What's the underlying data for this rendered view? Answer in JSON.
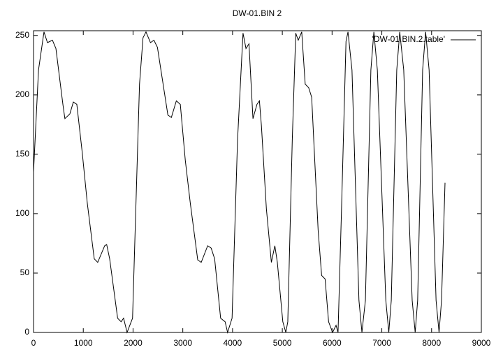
{
  "chart_data": {
    "type": "line",
    "title": "DW-01.BIN 2",
    "x": [
      0,
      100,
      210,
      280,
      380,
      450,
      590,
      630,
      730,
      800,
      870,
      980,
      1080,
      1220,
      1290,
      1430,
      1470,
      1530,
      1690,
      1760,
      1810,
      1880,
      1990,
      2130,
      2200,
      2260,
      2350,
      2420,
      2490,
      2700,
      2770,
      2870,
      2950,
      3050,
      3150,
      3300,
      3370,
      3500,
      3570,
      3640,
      3760,
      3850,
      3900,
      3990,
      4100,
      4210,
      4270,
      4330,
      4410,
      4490,
      4540,
      4580,
      4680,
      4780,
      4850,
      4900,
      5010,
      5070,
      5110,
      5200,
      5270,
      5320,
      5390,
      5460,
      5530,
      5590,
      5720,
      5790,
      5860,
      5930,
      6010,
      6080,
      6120,
      6190,
      6280,
      6320,
      6400,
      6540,
      6600,
      6670,
      6780,
      6840,
      6910,
      7080,
      7140,
      7190,
      7300,
      7360,
      7440,
      7610,
      7670,
      7720,
      7820,
      7880,
      7950,
      8090,
      8150,
      8200,
      8270
    ],
    "series": [
      {
        "name": "'DW-01.BIN.2.table'",
        "color": "#000000",
        "values": [
          135,
          221,
          253,
          244,
          246,
          239,
          192,
          180,
          184,
          194,
          192,
          151,
          109,
          62,
          59,
          73,
          74,
          62,
          12,
          9,
          12,
          0,
          12,
          209,
          248,
          253,
          244,
          246,
          240,
          183,
          181,
          195,
          192,
          145,
          109,
          61,
          59,
          73,
          71,
          62,
          12,
          9,
          0,
          12,
          162,
          252,
          239,
          243,
          180,
          192,
          195,
          174,
          104,
          59,
          73,
          59,
          9,
          0,
          9,
          162,
          252,
          246,
          253,
          209,
          206,
          198,
          86,
          48,
          45,
          9,
          0,
          6,
          0,
          104,
          245,
          253,
          221,
          27,
          0,
          27,
          221,
          253,
          221,
          27,
          0,
          27,
          221,
          253,
          221,
          27,
          0,
          27,
          221,
          253,
          221,
          27,
          0,
          27,
          126
        ]
      }
    ],
    "xlim": [
      0,
      9000
    ],
    "xticks": [
      0,
      1000,
      2000,
      3000,
      4000,
      5000,
      6000,
      7000,
      8000,
      9000
    ],
    "ylim": [
      0,
      254
    ],
    "yticks": [
      0,
      50,
      100,
      150,
      200,
      250
    ],
    "grid": false,
    "legend": "top-right"
  }
}
